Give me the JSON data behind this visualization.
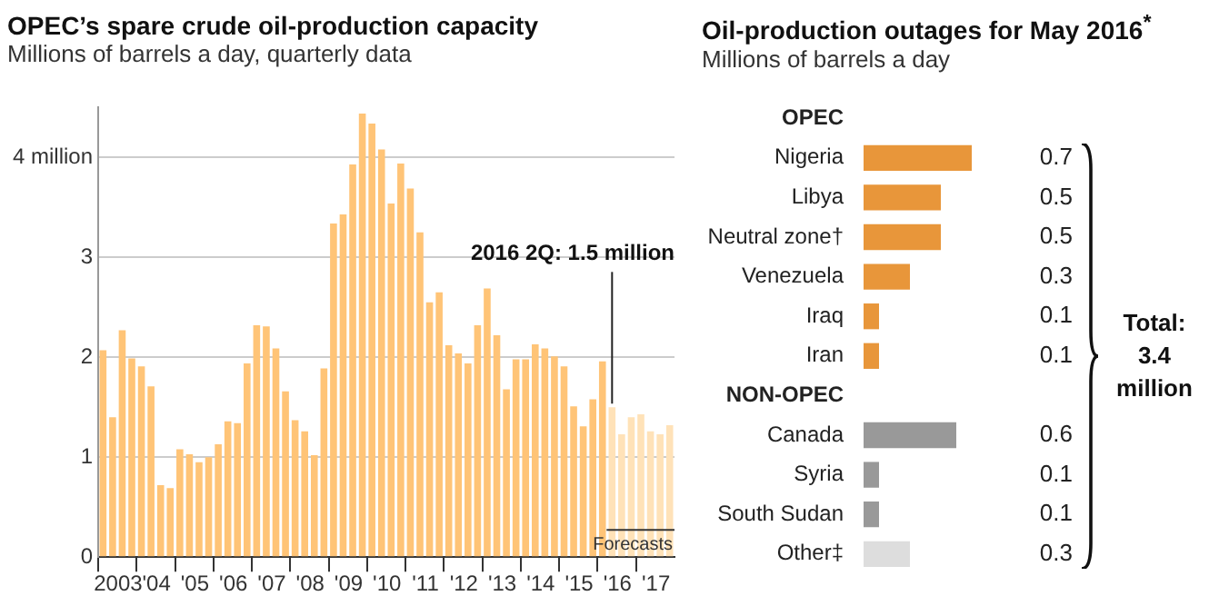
{
  "chart_data": [
    {
      "type": "bar",
      "title": "OPEC’s spare crude oil-production capacity",
      "subtitle": "Millions of barrels a day, quarterly data",
      "categories": [
        null,
        "2003",
        null,
        null,
        null,
        "'04",
        null,
        null,
        null,
        "'05",
        null,
        null,
        null,
        "'06",
        null,
        null,
        null,
        "'07",
        null,
        null,
        null,
        "'08",
        null,
        null,
        null,
        "'09",
        null,
        null,
        null,
        "'10",
        null,
        null,
        null,
        "'11",
        null,
        null,
        null,
        "'12",
        null,
        null,
        null,
        "'13",
        null,
        null,
        null,
        "'14",
        null,
        null,
        null,
        "'15",
        null,
        null,
        null,
        "'16",
        null,
        null,
        null,
        "'17",
        null,
        null
      ],
      "values": [
        2.07,
        1.4,
        2.27,
        1.99,
        1.91,
        1.71,
        0.72,
        0.69,
        1.08,
        1.03,
        0.95,
        1.0,
        1.13,
        1.36,
        1.34,
        1.94,
        2.32,
        2.31,
        2.09,
        1.66,
        1.37,
        1.26,
        1.02,
        1.89,
        3.34,
        3.43,
        3.93,
        4.44,
        4.34,
        4.08,
        3.54,
        3.94,
        3.69,
        3.25,
        2.55,
        2.65,
        2.12,
        2.04,
        1.94,
        2.32,
        2.69,
        2.22,
        1.68,
        1.98,
        1.98,
        2.13,
        2.09,
        2.01,
        1.91,
        1.51,
        1.31,
        1.58,
        1.96,
        1.5,
        1.23,
        1.4,
        1.43,
        1.26,
        1.23,
        1.32
      ],
      "colors": [
        "#ffc477",
        "#ffc477",
        "#ffc477",
        "#ffc477",
        "#ffc477",
        "#ffc477",
        "#ffc477",
        "#ffc477",
        "#ffc477",
        "#ffc477",
        "#ffc477",
        "#ffc477",
        "#ffc477",
        "#ffc477",
        "#ffc477",
        "#ffc477",
        "#ffc477",
        "#ffc477",
        "#ffc477",
        "#ffc477",
        "#ffc477",
        "#ffc477",
        "#ffc477",
        "#ffc477",
        "#ffc477",
        "#ffc477",
        "#ffc477",
        "#ffc477",
        "#ffc477",
        "#ffc477",
        "#ffc477",
        "#ffc477",
        "#ffc477",
        "#ffc477",
        "#ffc477",
        "#ffc477",
        "#ffc477",
        "#ffc477",
        "#ffc477",
        "#ffc477",
        "#ffc477",
        "#ffc477",
        "#ffc477",
        "#ffc477",
        "#ffc477",
        "#ffc477",
        "#ffc477",
        "#ffc477",
        "#ffc477",
        "#ffc477",
        "#ffc477",
        "#ffc477",
        "#ffc477",
        "#ffe2b8",
        "#ffe2b8",
        "#ffe2b8",
        "#ffe2b8",
        "#ffe2b8",
        "#ffe2b8",
        "#ffe2b8"
      ],
      "ylim": [
        0,
        4.5
      ],
      "yticks": [
        0,
        1,
        2,
        3,
        {
          "value": 4,
          "label": "4 million"
        }
      ],
      "grid": "y",
      "annotations": [
        {
          "text": "2016 2Q: 1.5 million",
          "x": "'16",
          "y": 1.5
        },
        "Forecasts"
      ]
    },
    {
      "type": "bar",
      "orientation": "horizontal",
      "title": "Oil-production outages for May 2016$^{*}$",
      "subtitle": "Millions of barrels a day",
      "categories": [
        "OPEC",
        "Nigeria",
        "Libya",
        "Neutral zone†",
        "Venezuela",
        "Iraq",
        "Iran",
        "NON-OPEC",
        "Canada",
        "Syria",
        "South Sudan",
        "Other‡"
      ],
      "values": [
        null,
        0.7,
        0.5,
        0.5,
        0.3,
        0.1,
        0.1,
        null,
        0.6,
        0.1,
        0.1,
        0.3
      ],
      "colors": [
        "#e8963a",
        "#e8963a",
        "#e8963a",
        "#e8963a",
        "#e8963a",
        "#e8963a",
        "#e8963a",
        "#999999",
        "#999999",
        "#999999",
        "#999999",
        "#dddddd"
      ],
      "data_labels": true,
      "grid": false,
      "annotations": [
        "Total: 3.4 million"
      ]
    }
  ]
}
